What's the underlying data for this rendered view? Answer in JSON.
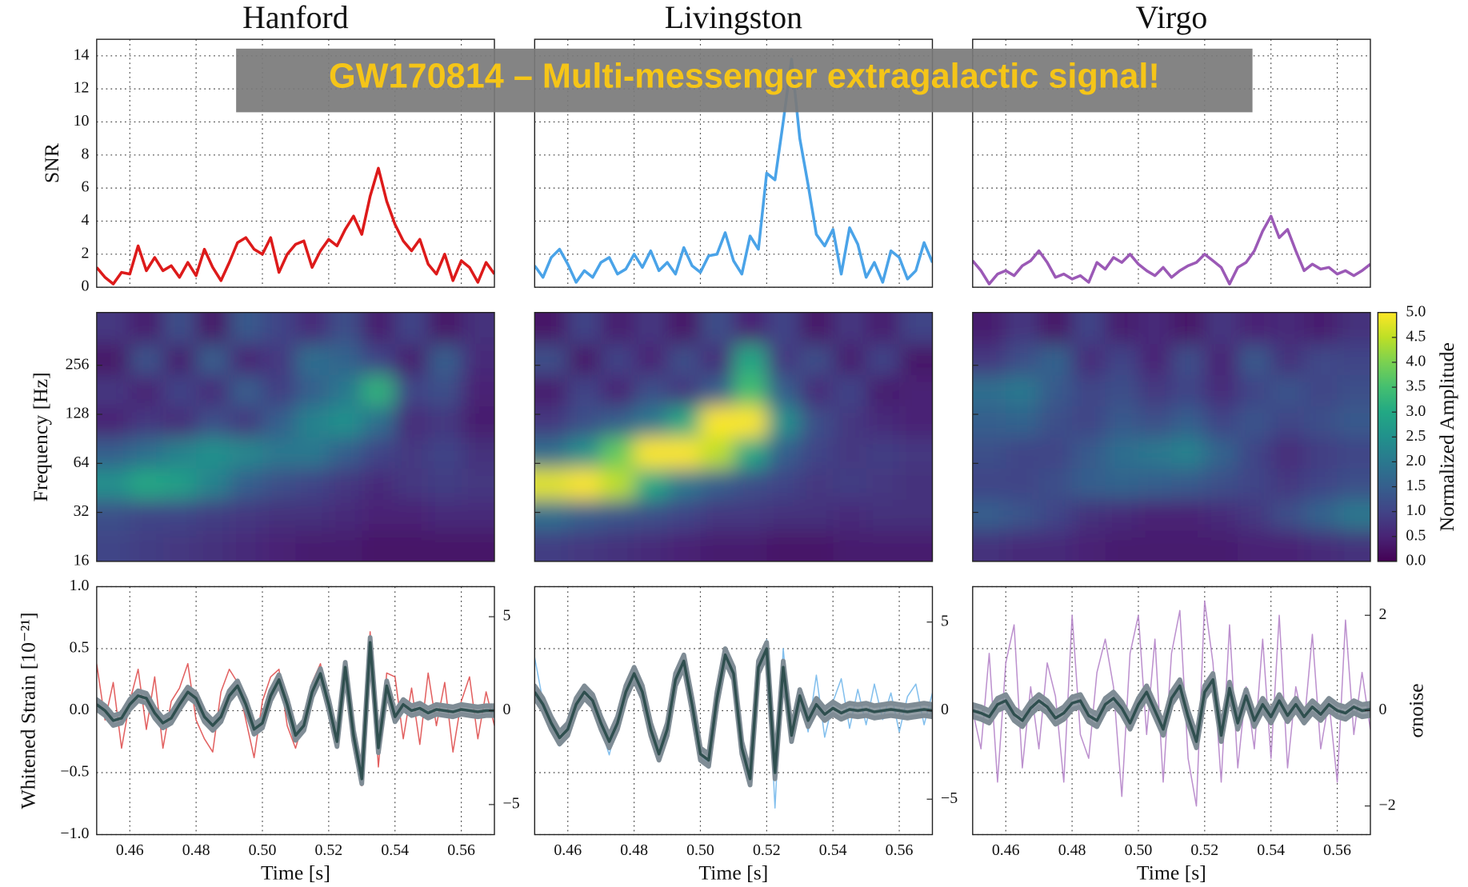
{
  "banner": "GW170814 – Multi-messenger extragalactic signal!",
  "colorbar": {
    "label": "Normalized Amplitude",
    "colormap": "viridis",
    "lim": [
      0,
      5
    ],
    "ticks": [
      {
        "value": 0,
        "label": "0.0"
      },
      0.5,
      {
        "value": 1,
        "label": "1.0"
      },
      1.5,
      {
        "value": 2,
        "label": "2.0"
      },
      2.5,
      {
        "value": 3,
        "label": "3.0"
      },
      3.5,
      {
        "value": 4,
        "label": "4.0"
      },
      4.5,
      {
        "value": 5,
        "label": "5.0"
      }
    ]
  },
  "chart_data": [
    {
      "title": "Hanford",
      "xlabel": "Time [s]",
      "x": [
        0.45,
        0.4525,
        0.455,
        0.4575,
        0.46,
        0.4625,
        0.465,
        0.4675,
        0.47,
        0.4725,
        0.475,
        0.4775,
        0.48,
        0.4825,
        0.485,
        0.4875,
        0.49,
        0.4925,
        0.495,
        0.4975,
        0.5,
        0.5025,
        0.505,
        0.5075,
        0.51,
        0.5125,
        0.515,
        0.5175,
        0.52,
        0.5225,
        0.525,
        0.5275,
        0.53,
        0.5325,
        0.535,
        0.5375,
        0.54,
        0.5425,
        0.545,
        0.5475,
        0.55,
        0.5525,
        0.555,
        0.5575,
        0.56,
        0.5625,
        0.565,
        0.5675,
        0.57
      ],
      "xlim": [
        0.45,
        0.57
      ],
      "xticks": [
        0.46,
        0.48,
        {
          "value": 0.5,
          "label": "0.50"
        },
        0.52,
        0.54,
        0.56
      ],
      "grid": true,
      "snr": {
        "type": "line",
        "ylabel": "SNR",
        "ylim": [
          0,
          15
        ],
        "yticks": [
          0,
          2,
          4,
          6,
          8,
          10,
          12,
          14
        ],
        "color": "#dd1a1a",
        "values": [
          1.2,
          0.6,
          0.2,
          0.9,
          0.8,
          2.5,
          1.0,
          1.8,
          1.0,
          1.3,
          0.6,
          1.5,
          0.7,
          2.3,
          1.2,
          0.4,
          1.5,
          2.7,
          3.0,
          2.3,
          2.0,
          3.0,
          0.9,
          2.0,
          2.6,
          2.8,
          1.2,
          2.2,
          2.9,
          2.5,
          3.5,
          4.3,
          3.2,
          5.5,
          7.2,
          5.2,
          3.8,
          2.8,
          2.2,
          2.9,
          1.4,
          0.8,
          2.0,
          0.4,
          1.6,
          1.2,
          0.3,
          1.5,
          0.8
        ]
      },
      "spectrogram": {
        "type": "heatmap",
        "ylabel": "Frequency [Hz]",
        "log_scale": true,
        "ylim": [
          16,
          540
        ],
        "yticks": [
          16,
          32,
          64,
          128,
          256
        ],
        "z": [
          [
            1.0,
            0.9,
            0.8,
            0.7,
            0.6,
            0.5,
            0.4,
            0.4,
            0.3,
            0.3,
            0.3,
            0.3
          ],
          [
            1.2,
            1.0,
            1.0,
            0.9,
            0.8,
            0.7,
            0.7,
            0.6,
            0.5,
            0.5,
            0.6,
            0.6
          ],
          [
            2.5,
            3.0,
            2.8,
            2.2,
            1.5,
            1.2,
            1.0,
            0.8,
            0.6,
            0.8,
            0.9,
            0.8
          ],
          [
            1.5,
            1.8,
            2.2,
            2.5,
            2.3,
            2.0,
            2.0,
            1.5,
            1.0,
            0.8,
            1.0,
            0.7
          ],
          [
            0.5,
            0.8,
            0.6,
            1.2,
            0.8,
            1.5,
            2.2,
            2.5,
            1.8,
            0.6,
            0.8,
            0.4
          ],
          [
            0.8,
            0.5,
            1.0,
            0.6,
            1.5,
            0.9,
            1.5,
            2.0,
            3.2,
            1.0,
            1.2,
            0.5
          ],
          [
            0.3,
            1.3,
            0.4,
            1.5,
            0.5,
            0.8,
            1.8,
            1.6,
            1.0,
            0.4,
            1.5,
            0.6
          ],
          [
            0.8,
            0.4,
            1.2,
            0.3,
            1.4,
            1.0,
            0.6,
            1.2,
            0.4,
            1.0,
            0.3,
            0.7
          ]
        ]
      },
      "strain": {
        "type": "line",
        "ylabel": "Whitened Strain [10⁻²¹]",
        "ylim": [
          -1,
          1
        ],
        "yticks": [
          {
            "value": -1,
            "label": "−1.0"
          },
          {
            "value": -0.5,
            "label": "−0.5"
          },
          {
            "value": 0,
            "label": "0.0"
          },
          0.5,
          {
            "value": 1,
            "label": "1.0"
          }
        ],
        "y2lim": [
          -6.6,
          6.6
        ],
        "y2ticks": [
          {
            "value": -5,
            "label": "−5"
          },
          0,
          5
        ],
        "series": [
          {
            "color": "#dd4444",
            "axis": "y2",
            "values": [
              2.5,
              -0.5,
              1.5,
              -2.0,
              0.5,
              2.2,
              -1.0,
              1.8,
              -2.0,
              0.5,
              1.2,
              2.5,
              -0.5,
              -1.5,
              -2.2,
              1.0,
              2.2,
              1.5,
              -0.5,
              -2.5,
              0.5,
              1.8,
              2.2,
              -0.8,
              -2.0,
              -0.5,
              1.5,
              2.5,
              0.2,
              -2.0,
              2.5,
              -1.2,
              -4.0,
              4.2,
              -3.0,
              2.0,
              1.8,
              -1.5,
              1.2,
              -1.8,
              2.0,
              -0.8,
              1.5,
              -2.2,
              0.5,
              1.8,
              -1.5,
              1.0,
              -0.8
            ]
          },
          {
            "color": "#2f4f4f",
            "band": 0.04,
            "band_color": "#7f8c95",
            "values": [
              0.05,
              0.0,
              -0.08,
              -0.06,
              0.05,
              0.12,
              0.1,
              -0.02,
              -0.1,
              -0.06,
              0.05,
              0.15,
              0.1,
              -0.05,
              -0.12,
              -0.05,
              0.12,
              0.2,
              0.05,
              -0.15,
              -0.1,
              0.12,
              0.25,
              0.05,
              -0.2,
              -0.12,
              0.15,
              0.3,
              0.05,
              -0.25,
              0.35,
              -0.2,
              -0.55,
              0.55,
              -0.3,
              0.2,
              -0.05,
              0.05,
              0.0,
              0.02,
              -0.02,
              0.01,
              0.0,
              -0.01,
              0.01,
              0.0,
              -0.01,
              0.0,
              0.0
            ]
          }
        ]
      }
    },
    {
      "title": "Livingston",
      "xlabel": "Time [s]",
      "snr": {
        "type": "line",
        "color": "#4aa3e8",
        "values": [
          1.3,
          0.6,
          1.8,
          2.3,
          1.4,
          0.3,
          1.0,
          0.6,
          1.5,
          1.8,
          0.8,
          1.1,
          2.0,
          1.2,
          2.2,
          1.0,
          1.5,
          0.8,
          2.4,
          1.3,
          0.9,
          1.9,
          2.0,
          3.3,
          1.6,
          0.8,
          3.1,
          2.3,
          6.9,
          6.5,
          10.0,
          13.8,
          9.0,
          6.2,
          3.2,
          2.5,
          3.5,
          0.8,
          3.6,
          2.6,
          0.6,
          1.5,
          0.3,
          2.2,
          1.8,
          0.5,
          1.0,
          2.7,
          1.5
        ]
      },
      "spectrogram": {
        "type": "heatmap",
        "z": [
          [
            0.9,
            0.8,
            0.7,
            0.6,
            0.5,
            0.4,
            0.4,
            0.3,
            0.3,
            0.4,
            0.4,
            0.4
          ],
          [
            1.8,
            1.5,
            1.3,
            1.2,
            1.0,
            0.8,
            0.8,
            0.7,
            0.7,
            0.6,
            0.7,
            0.7
          ],
          [
            4.8,
            5.0,
            4.5,
            3.0,
            2.0,
            1.5,
            1.2,
            1.0,
            0.8,
            0.9,
            0.8,
            0.7
          ],
          [
            1.8,
            2.5,
            3.8,
            5.0,
            5.0,
            4.5,
            3.0,
            1.5,
            1.0,
            0.8,
            0.9,
            0.8
          ],
          [
            0.8,
            1.2,
            1.5,
            2.0,
            3.0,
            5.0,
            5.0,
            2.5,
            1.2,
            0.8,
            0.6,
            0.5
          ],
          [
            0.4,
            1.0,
            0.5,
            1.2,
            0.8,
            1.5,
            3.5,
            1.5,
            0.6,
            1.0,
            0.4,
            0.5
          ],
          [
            1.2,
            0.3,
            1.0,
            0.5,
            1.2,
            0.6,
            3.0,
            0.8,
            1.2,
            0.4,
            1.0,
            0.3
          ],
          [
            0.3,
            1.0,
            0.4,
            0.8,
            0.3,
            1.2,
            0.5,
            1.0,
            0.3,
            0.8,
            0.4,
            1.0
          ]
        ]
      },
      "strain": {
        "type": "line",
        "y2lim": [
          -7,
          7
        ],
        "y2ticks": [
          {
            "value": -5,
            "label": "−5"
          },
          0,
          5
        ],
        "series": [
          {
            "color": "#6cb4ea",
            "axis": "y2",
            "values": [
              3.0,
              0.5,
              -0.5,
              -2.0,
              -1.5,
              0.0,
              1.5,
              0.3,
              -1.0,
              -2.5,
              -0.5,
              1.0,
              2.5,
              1.5,
              -1.5,
              -2.5,
              -1.0,
              2.0,
              3.0,
              0.5,
              -2.5,
              -3.0,
              0.5,
              3.5,
              2.5,
              -2.5,
              -4.0,
              2.5,
              4.0,
              -5.5,
              3.5,
              -1.5,
              1.0,
              -1.2,
              2.0,
              -1.5,
              0.5,
              1.8,
              -1.0,
              1.2,
              -0.8,
              1.5,
              -0.5,
              1.0,
              -1.2,
              0.8,
              1.5,
              -0.8,
              1.0
            ]
          },
          {
            "color": "#2f4f4f",
            "band": 0.05,
            "band_color": "#7f8c95",
            "values": [
              0.15,
              0.05,
              -0.1,
              -0.22,
              -0.15,
              0.05,
              0.15,
              0.08,
              -0.1,
              -0.25,
              -0.1,
              0.15,
              0.3,
              0.15,
              -0.15,
              -0.35,
              -0.15,
              0.25,
              0.4,
              0.05,
              -0.35,
              -0.4,
              0.1,
              0.45,
              0.3,
              -0.3,
              -0.55,
              0.35,
              0.5,
              -0.5,
              0.35,
              -0.2,
              0.12,
              -0.08,
              0.05,
              -0.03,
              0.02,
              -0.02,
              0.01,
              0.0,
              0.01,
              -0.01,
              0.0,
              0.01,
              0.0,
              -0.01,
              0.0,
              0.01,
              0.0
            ]
          }
        ]
      }
    },
    {
      "title": "Virgo",
      "xlabel": "Time [s]",
      "snr": {
        "type": "line",
        "color": "#9b59b6",
        "values": [
          1.6,
          1.0,
          0.2,
          0.8,
          1.0,
          0.7,
          1.3,
          1.6,
          2.2,
          1.5,
          0.6,
          0.8,
          0.5,
          0.7,
          0.3,
          1.5,
          1.1,
          1.8,
          1.5,
          2.0,
          1.4,
          1.0,
          0.7,
          1.2,
          0.6,
          1.0,
          1.3,
          1.5,
          2.0,
          1.6,
          1.2,
          0.2,
          1.2,
          1.5,
          2.2,
          3.4,
          4.3,
          3.0,
          3.5,
          2.2,
          1.0,
          1.4,
          1.1,
          1.2,
          0.8,
          1.0,
          0.7,
          1.0,
          1.4
        ]
      },
      "spectrogram": {
        "type": "heatmap",
        "z": [
          [
            0.7,
            0.6,
            0.6,
            0.5,
            0.4,
            0.4,
            0.4,
            0.4,
            0.5,
            0.5,
            0.6,
            0.7
          ],
          [
            1.5,
            1.3,
            1.0,
            0.7,
            0.6,
            0.5,
            0.5,
            0.6,
            0.8,
            1.2,
            1.6,
            2.0
          ],
          [
            1.0,
            1.0,
            1.2,
            1.5,
            1.6,
            1.5,
            1.4,
            1.2,
            1.0,
            0.8,
            1.0,
            1.2
          ],
          [
            1.2,
            1.0,
            1.0,
            1.4,
            1.8,
            2.0,
            2.2,
            1.6,
            1.0,
            0.6,
            0.9,
            1.0
          ],
          [
            1.5,
            1.6,
            1.2,
            1.0,
            1.4,
            1.2,
            1.5,
            1.0,
            1.3,
            1.0,
            1.2,
            1.4
          ],
          [
            1.8,
            2.0,
            1.4,
            1.0,
            1.2,
            0.8,
            1.0,
            0.6,
            1.0,
            1.3,
            1.0,
            1.2
          ],
          [
            0.8,
            1.2,
            1.6,
            0.6,
            1.0,
            0.5,
            1.2,
            0.5,
            1.4,
            0.7,
            1.1,
            1.0
          ],
          [
            0.4,
            0.8,
            0.3,
            1.0,
            0.4,
            0.6,
            0.3,
            0.8,
            0.5,
            0.6,
            0.4,
            0.7
          ]
        ]
      },
      "strain": {
        "type": "line",
        "y2label": "σnoise",
        "y2lim": [
          -2.6,
          2.6
        ],
        "y2ticks": [
          {
            "value": -2,
            "label": "−2"
          },
          0,
          2
        ],
        "series": [
          {
            "color": "#b07cc6",
            "axis": "y2",
            "values": [
              0.0,
              -0.8,
              1.2,
              -1.5,
              1.0,
              1.8,
              -1.2,
              0.5,
              -0.8,
              1.0,
              0.3,
              -1.5,
              2.0,
              -0.5,
              -1.0,
              0.8,
              1.5,
              0.5,
              -1.8,
              1.2,
              2.0,
              -0.5,
              1.5,
              -1.5,
              1.2,
              2.1,
              -1.0,
              -2.0,
              2.3,
              1.0,
              -1.5,
              1.8,
              -1.2,
              0.5,
              -0.8,
              1.5,
              -1.0,
              2.0,
              -1.2,
              0.5,
              -0.3,
              1.6,
              -0.8,
              0.2,
              -1.5,
              1.9,
              -0.5,
              0.8,
              -0.4
            ]
          },
          {
            "color": "#2f4f4f",
            "band": 0.05,
            "band_color": "#7f8c95",
            "values": [
              0.0,
              -0.02,
              -0.05,
              0.05,
              0.08,
              -0.03,
              -0.08,
              0.02,
              0.08,
              0.03,
              -0.06,
              -0.02,
              0.06,
              0.08,
              -0.04,
              -0.08,
              0.05,
              0.1,
              0.02,
              -0.1,
              0.05,
              0.15,
              0.0,
              -0.15,
              0.1,
              0.2,
              -0.05,
              -0.25,
              0.15,
              0.25,
              -0.2,
              0.18,
              -0.1,
              0.12,
              -0.08,
              0.05,
              -0.05,
              0.08,
              -0.04,
              0.05,
              -0.05,
              0.03,
              -0.03,
              0.05,
              0.0,
              -0.02,
              0.03,
              0.0,
              0.01
            ]
          }
        ]
      }
    }
  ]
}
